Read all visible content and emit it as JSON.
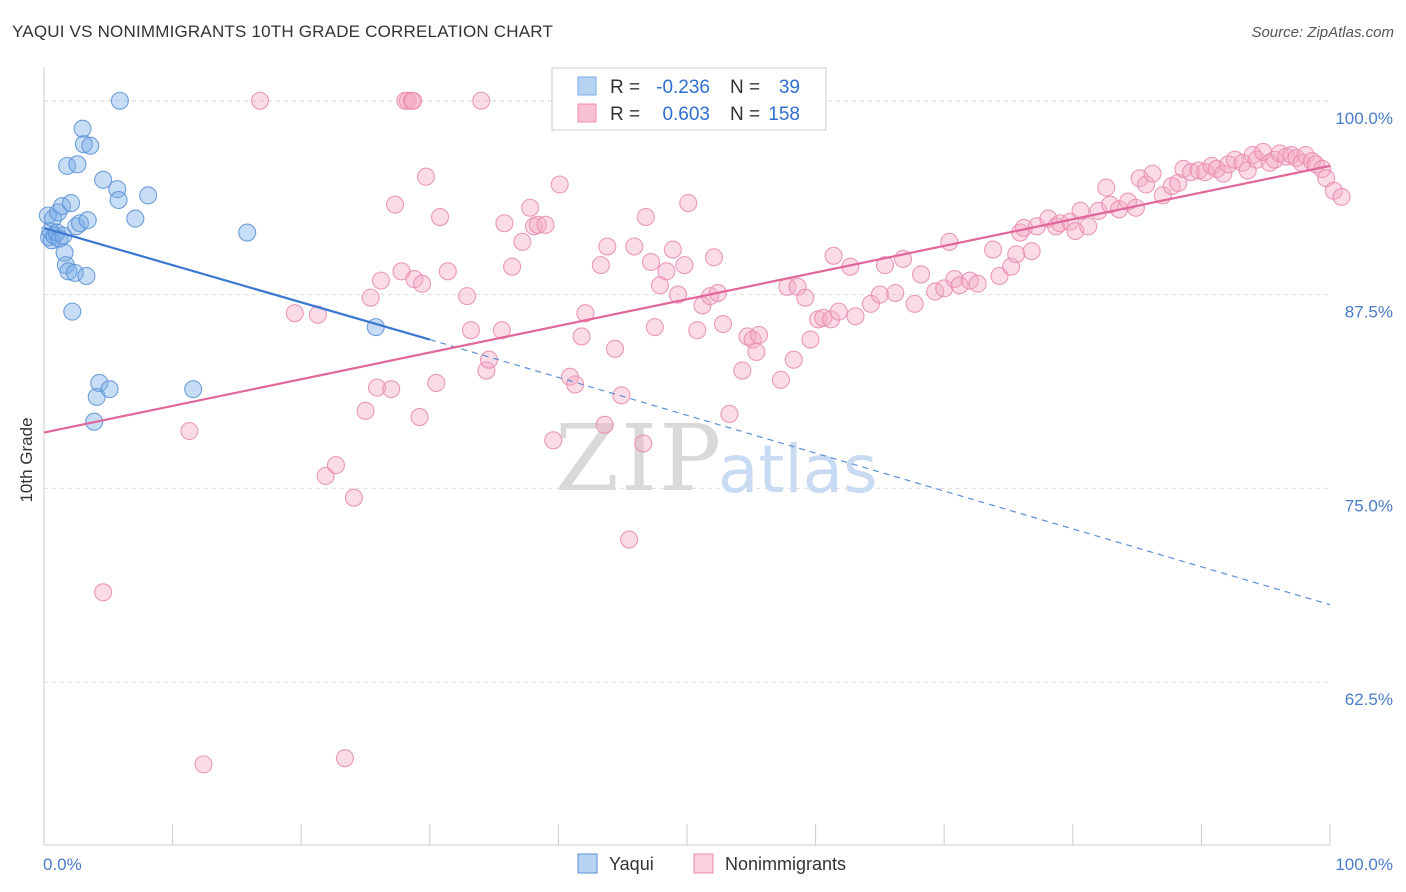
{
  "title": "YAQUI VS NONIMMIGRANTS 10TH GRADE CORRELATION CHART",
  "source": "Source: ZipAtlas.com",
  "chart_data": {
    "type": "scatter",
    "ylabel": "10th Grade",
    "xlim": [
      0,
      100
    ],
    "ylim": [
      52,
      102.5
    ],
    "y_ticks": [
      {
        "value": 62.5,
        "label": "62.5%"
      },
      {
        "value": 75.0,
        "label": "75.0%"
      },
      {
        "value": 87.5,
        "label": "87.5%"
      },
      {
        "value": 100.0,
        "label": "100.0%"
      }
    ],
    "x_tick_labels": {
      "left": "0.0%",
      "right": "100.0%"
    },
    "legend": {
      "rows": [
        {
          "r_label": "R =",
          "r_value": "-0.236",
          "n_label": "N =",
          "n_value": "39",
          "color": "#7aaee8"
        },
        {
          "r_label": "R =",
          "r_value": "0.603",
          "n_label": "N =",
          "n_value": "158",
          "color": "#f08cb0"
        }
      ]
    },
    "series": [
      {
        "name": "Yaqui",
        "color": "#7aaee8",
        "stroke": "#5b8fd6",
        "trend": {
          "x0": 0,
          "y0": 91.8,
          "x1": 30,
          "y1": 84.6,
          "dash_to_x": 100,
          "dash_to_y": 67.5
        },
        "points": [
          [
            0.3,
            92.6
          ],
          [
            0.4,
            91.2
          ],
          [
            0.5,
            91.6
          ],
          [
            0.6,
            91.0
          ],
          [
            0.7,
            92.4
          ],
          [
            0.8,
            91.3
          ],
          [
            1.0,
            91.5
          ],
          [
            1.1,
            92.8
          ],
          [
            1.2,
            91.1
          ],
          [
            1.4,
            93.2
          ],
          [
            1.5,
            91.3
          ],
          [
            1.6,
            90.2
          ],
          [
            1.7,
            89.4
          ],
          [
            1.8,
            95.8
          ],
          [
            1.9,
            89.0
          ],
          [
            2.1,
            93.4
          ],
          [
            2.2,
            86.4
          ],
          [
            2.4,
            88.9
          ],
          [
            2.5,
            91.9
          ],
          [
            2.6,
            95.9
          ],
          [
            2.8,
            92.1
          ],
          [
            3.0,
            98.2
          ],
          [
            3.1,
            97.2
          ],
          [
            3.3,
            88.7
          ],
          [
            3.4,
            92.3
          ],
          [
            3.6,
            97.1
          ],
          [
            3.9,
            79.3
          ],
          [
            4.1,
            80.9
          ],
          [
            4.3,
            81.8
          ],
          [
            4.6,
            94.9
          ],
          [
            5.1,
            81.4
          ],
          [
            5.7,
            94.3
          ],
          [
            5.8,
            93.6
          ],
          [
            5.9,
            100.0
          ],
          [
            7.1,
            92.4
          ],
          [
            8.1,
            93.9
          ],
          [
            11.6,
            81.4
          ],
          [
            15.8,
            91.5
          ],
          [
            25.8,
            85.4
          ]
        ]
      },
      {
        "name": "Nonimmigrants",
        "color": "#f4a9c3",
        "stroke": "#e98aad",
        "trend": {
          "x0": 0,
          "y0": 78.6,
          "x1": 100,
          "y1": 95.8
        },
        "points": [
          [
            4.6,
            68.3
          ],
          [
            11.3,
            78.7
          ],
          [
            12.4,
            57.2
          ],
          [
            16.8,
            100.0
          ],
          [
            19.5,
            86.3
          ],
          [
            21.3,
            86.2
          ],
          [
            21.9,
            75.8
          ],
          [
            22.7,
            76.5
          ],
          [
            23.4,
            57.6
          ],
          [
            24.1,
            74.4
          ],
          [
            25.0,
            80.0
          ],
          [
            25.4,
            87.3
          ],
          [
            25.9,
            81.5
          ],
          [
            26.2,
            88.4
          ],
          [
            27.0,
            81.4
          ],
          [
            27.3,
            93.3
          ],
          [
            27.8,
            89.0
          ],
          [
            28.1,
            100.0
          ],
          [
            28.3,
            100.0
          ],
          [
            28.6,
            100.0
          ],
          [
            28.7,
            100.0
          ],
          [
            28.8,
            88.5
          ],
          [
            29.2,
            79.6
          ],
          [
            29.4,
            88.2
          ],
          [
            29.7,
            95.1
          ],
          [
            30.5,
            81.8
          ],
          [
            30.8,
            92.5
          ],
          [
            31.4,
            89.0
          ],
          [
            32.9,
            87.4
          ],
          [
            33.2,
            85.2
          ],
          [
            34.0,
            100.0
          ],
          [
            34.4,
            82.6
          ],
          [
            34.6,
            83.3
          ],
          [
            35.6,
            85.2
          ],
          [
            35.8,
            92.1
          ],
          [
            36.4,
            89.3
          ],
          [
            37.2,
            90.9
          ],
          [
            37.8,
            93.1
          ],
          [
            38.1,
            91.9
          ],
          [
            38.4,
            92.0
          ],
          [
            39.0,
            92.0
          ],
          [
            39.6,
            78.1
          ],
          [
            40.1,
            94.6
          ],
          [
            40.9,
            82.2
          ],
          [
            41.3,
            81.7
          ],
          [
            41.8,
            84.8
          ],
          [
            42.1,
            86.3
          ],
          [
            43.3,
            89.4
          ],
          [
            43.6,
            79.1
          ],
          [
            43.8,
            90.6
          ],
          [
            44.4,
            84.0
          ],
          [
            44.9,
            81.0
          ],
          [
            45.5,
            71.7
          ],
          [
            45.9,
            90.6
          ],
          [
            46.6,
            77.9
          ],
          [
            46.8,
            92.5
          ],
          [
            47.2,
            89.6
          ],
          [
            47.5,
            85.4
          ],
          [
            47.9,
            88.1
          ],
          [
            48.4,
            89.0
          ],
          [
            48.9,
            90.4
          ],
          [
            49.3,
            87.5
          ],
          [
            49.8,
            89.4
          ],
          [
            50.1,
            93.4
          ],
          [
            50.8,
            85.2
          ],
          [
            51.2,
            86.8
          ],
          [
            51.8,
            87.4
          ],
          [
            52.1,
            89.9
          ],
          [
            52.4,
            87.6
          ],
          [
            52.8,
            85.6
          ],
          [
            53.3,
            79.8
          ],
          [
            54.3,
            82.6
          ],
          [
            54.7,
            84.8
          ],
          [
            55.1,
            84.6
          ],
          [
            55.4,
            83.8
          ],
          [
            55.6,
            84.9
          ],
          [
            57.3,
            82.0
          ],
          [
            57.8,
            88.0
          ],
          [
            58.3,
            83.3
          ],
          [
            58.6,
            88.0
          ],
          [
            59.2,
            87.3
          ],
          [
            59.6,
            84.6
          ],
          [
            60.2,
            85.9
          ],
          [
            60.6,
            86.0
          ],
          [
            61.2,
            85.9
          ],
          [
            61.4,
            90.0
          ],
          [
            61.8,
            86.4
          ],
          [
            62.7,
            89.3
          ],
          [
            63.1,
            86.1
          ],
          [
            64.3,
            86.9
          ],
          [
            65.0,
            87.5
          ],
          [
            65.4,
            89.4
          ],
          [
            66.2,
            87.6
          ],
          [
            66.8,
            89.8
          ],
          [
            67.7,
            86.9
          ],
          [
            68.2,
            88.8
          ],
          [
            69.3,
            87.7
          ],
          [
            70.0,
            87.9
          ],
          [
            70.4,
            90.9
          ],
          [
            70.8,
            88.5
          ],
          [
            71.2,
            88.1
          ],
          [
            72.0,
            88.4
          ],
          [
            72.6,
            88.2
          ],
          [
            73.8,
            90.4
          ],
          [
            74.3,
            88.7
          ],
          [
            75.2,
            89.3
          ],
          [
            75.6,
            90.1
          ],
          [
            75.9,
            91.5
          ],
          [
            76.2,
            91.8
          ],
          [
            76.8,
            90.3
          ],
          [
            77.2,
            91.9
          ],
          [
            78.1,
            92.4
          ],
          [
            78.7,
            91.9
          ],
          [
            79.0,
            92.1
          ],
          [
            79.8,
            92.2
          ],
          [
            80.2,
            91.6
          ],
          [
            80.6,
            92.9
          ],
          [
            81.2,
            91.9
          ],
          [
            82.0,
            92.9
          ],
          [
            82.6,
            94.4
          ],
          [
            82.9,
            93.3
          ],
          [
            83.6,
            93.0
          ],
          [
            84.3,
            93.5
          ],
          [
            84.9,
            93.1
          ],
          [
            85.2,
            95.0
          ],
          [
            85.7,
            94.6
          ],
          [
            86.2,
            95.3
          ],
          [
            87.0,
            93.9
          ],
          [
            87.7,
            94.5
          ],
          [
            88.2,
            94.7
          ],
          [
            88.6,
            95.6
          ],
          [
            89.2,
            95.4
          ],
          [
            89.8,
            95.5
          ],
          [
            90.3,
            95.4
          ],
          [
            90.8,
            95.8
          ],
          [
            91.2,
            95.6
          ],
          [
            91.7,
            95.3
          ],
          [
            92.1,
            95.9
          ],
          [
            92.6,
            96.2
          ],
          [
            93.2,
            96.0
          ],
          [
            93.6,
            95.5
          ],
          [
            94.0,
            96.5
          ],
          [
            94.3,
            96.2
          ],
          [
            94.8,
            96.7
          ],
          [
            95.3,
            96.0
          ],
          [
            95.7,
            96.2
          ],
          [
            96.1,
            96.6
          ],
          [
            96.6,
            96.4
          ],
          [
            97.0,
            96.5
          ],
          [
            97.4,
            96.3
          ],
          [
            97.8,
            96.0
          ],
          [
            98.1,
            96.5
          ],
          [
            98.6,
            96.1
          ],
          [
            98.9,
            95.9
          ],
          [
            99.4,
            95.6
          ],
          [
            99.7,
            95.0
          ],
          [
            100.3,
            94.2
          ],
          [
            100.9,
            93.8
          ]
        ]
      }
    ]
  }
}
